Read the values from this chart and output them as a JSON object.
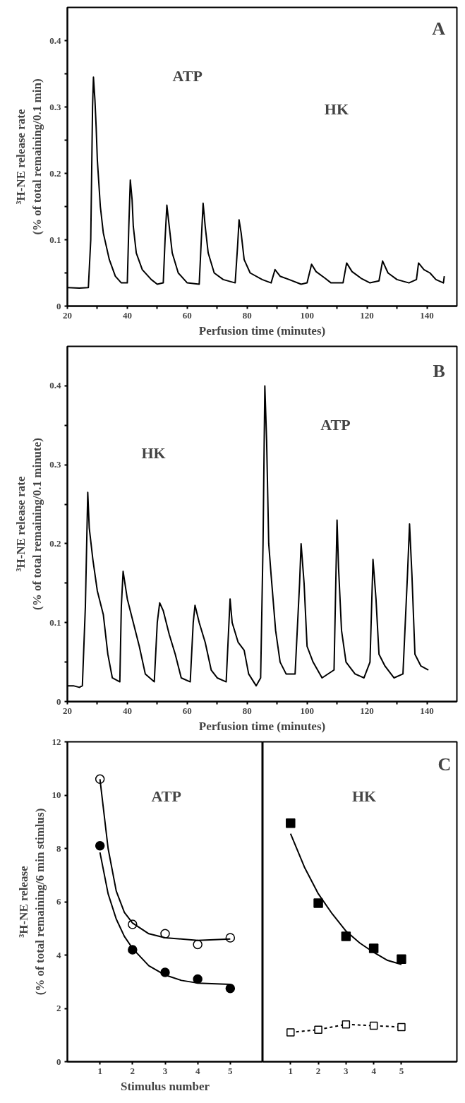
{
  "chart_data": [
    {
      "type": "line",
      "xlabel": "Perfusion time (minutes)",
      "ylabel": "³H-NE release rate\n(% of total remaining/0.1 min)",
      "annotations": [
        "A",
        "ATP",
        "HK"
      ],
      "xlim": [
        20,
        150
      ],
      "ylim": [
        0,
        0.45
      ],
      "xticks": [
        20,
        {
          "value": 30,
          "label": null
        },
        40,
        {
          "value": 50,
          "label": null
        },
        60,
        {
          "value": 70,
          "label": null
        },
        80,
        {
          "value": 90,
          "label": null
        },
        100,
        {
          "value": 110,
          "label": null
        },
        120,
        {
          "value": 130,
          "label": null
        },
        140
      ],
      "yticks": [
        0,
        {
          "value": 0.05,
          "label": null
        },
        0.1,
        {
          "value": 0.15,
          "label": null
        },
        0.2,
        {
          "value": 0.25,
          "label": null
        },
        0.3,
        {
          "value": 0.35,
          "label": null
        },
        0.4
      ],
      "grid": false,
      "marker": "none",
      "line_style": "solid",
      "series": [
        {
          "color": "#000000",
          "x": [
            20,
            24,
            27,
            27.8,
            28.4,
            28.7,
            29.2,
            29.6,
            30,
            31,
            32,
            34,
            36,
            38,
            40,
            40.5,
            41,
            41.6,
            42,
            43,
            45,
            48,
            50,
            52,
            52.6,
            53.2,
            54,
            55,
            57,
            60,
            64,
            64.7,
            65.3,
            66,
            67,
            69,
            72,
            76,
            76.8,
            77.3,
            78,
            79,
            81,
            85,
            88,
            89.3,
            91,
            94,
            98,
            100,
            101.5,
            103,
            106,
            108,
            112,
            113.2,
            115,
            118,
            121,
            124,
            125.2,
            127,
            130,
            134,
            136.5,
            137.2,
            139,
            141,
            143,
            145.5,
            145.8
          ],
          "values": [
            0.028,
            0.027,
            0.028,
            0.1,
            0.3,
            0.345,
            0.31,
            0.27,
            0.22,
            0.15,
            0.11,
            0.07,
            0.045,
            0.035,
            0.035,
            0.12,
            0.19,
            0.16,
            0.12,
            0.08,
            0.055,
            0.04,
            0.033,
            0.035,
            0.1,
            0.152,
            0.12,
            0.08,
            0.05,
            0.035,
            0.033,
            0.1,
            0.155,
            0.12,
            0.08,
            0.05,
            0.04,
            0.035,
            0.09,
            0.13,
            0.11,
            0.07,
            0.05,
            0.04,
            0.035,
            0.055,
            0.045,
            0.04,
            0.033,
            0.035,
            0.063,
            0.052,
            0.042,
            0.035,
            0.035,
            0.065,
            0.052,
            0.042,
            0.035,
            0.038,
            0.068,
            0.05,
            0.04,
            0.035,
            0.04,
            0.065,
            0.055,
            0.05,
            0.04,
            0.035,
            0.045
          ]
        }
      ]
    },
    {
      "type": "line",
      "xlabel": "Perfusion time (minutes)",
      "ylabel": "³H-NE release rate\n(% of total remaining/0.1 minute)",
      "annotations": [
        "B",
        "HK",
        "ATP"
      ],
      "xlim": [
        20,
        150
      ],
      "ylim": [
        0,
        0.45
      ],
      "xticks": [
        20,
        {
          "value": 30,
          "label": null
        },
        40,
        {
          "value": 50,
          "label": null
        },
        60,
        {
          "value": 70,
          "label": null
        },
        80,
        {
          "value": 90,
          "label": null
        },
        100,
        {
          "value": 110,
          "label": null
        },
        120,
        {
          "value": 130,
          "label": null
        },
        140
      ],
      "yticks": [
        0,
        {
          "value": 0.05,
          "label": null
        },
        0.1,
        {
          "value": 0.15,
          "label": null
        },
        0.2,
        {
          "value": 0.25,
          "label": null
        },
        0.3,
        {
          "value": 0.35,
          "label": null
        },
        0.4
      ],
      "grid": false,
      "marker": "none",
      "line_style": "solid",
      "series": [
        {
          "color": "#000000",
          "x": [
            20,
            22,
            24,
            25,
            26,
            26.8,
            27.3,
            28.5,
            30,
            32,
            33.5,
            35,
            37.5,
            38,
            38.6,
            40,
            42,
            44,
            46,
            49,
            50,
            50.8,
            52,
            54,
            56,
            58,
            61,
            62,
            62.6,
            64,
            66,
            68,
            70,
            73,
            74.3,
            75,
            77,
            79,
            80.5,
            83,
            84.5,
            85.3,
            85.9,
            86.5,
            87.2,
            88,
            89.5,
            91,
            93,
            96,
            97.5,
            98,
            99,
            100,
            102,
            105,
            109,
            110,
            110.5,
            111.5,
            113,
            116,
            119,
            121,
            122,
            123,
            124,
            126,
            129,
            132,
            133.5,
            134.2,
            135,
            136,
            138,
            140.5
          ],
          "values": [
            0.02,
            0.02,
            0.018,
            0.02,
            0.12,
            0.265,
            0.22,
            0.18,
            0.14,
            0.11,
            0.06,
            0.03,
            0.025,
            0.12,
            0.165,
            0.13,
            0.1,
            0.07,
            0.035,
            0.025,
            0.1,
            0.125,
            0.115,
            0.085,
            0.06,
            0.03,
            0.025,
            0.1,
            0.122,
            0.1,
            0.075,
            0.04,
            0.03,
            0.025,
            0.13,
            0.1,
            0.075,
            0.065,
            0.035,
            0.02,
            0.03,
            0.2,
            0.4,
            0.33,
            0.2,
            0.16,
            0.09,
            0.05,
            0.035,
            0.035,
            0.15,
            0.2,
            0.15,
            0.07,
            0.05,
            0.03,
            0.04,
            0.23,
            0.17,
            0.09,
            0.05,
            0.035,
            0.03,
            0.05,
            0.18,
            0.13,
            0.06,
            0.045,
            0.03,
            0.035,
            0.16,
            0.225,
            0.16,
            0.06,
            0.045,
            0.04
          ]
        }
      ]
    },
    {
      "type": "scatter",
      "ylabel": "³H-NE release\n(% of total remaining/6 min stimlus)",
      "xlabel": "Stimulus number",
      "annotations": [
        "ATP"
      ],
      "xlim": [
        0,
        6
      ],
      "ylim": [
        0,
        12
      ],
      "xticks": [
        1,
        2,
        3,
        4,
        5
      ],
      "yticks": [
        0,
        2,
        4,
        6,
        8,
        10,
        12
      ],
      "grid": false,
      "series": [
        {
          "type": "scatter",
          "marker": "circle",
          "color": "#ffffff",
          "x": [
            1,
            2,
            3,
            4,
            5
          ],
          "values": [
            10.6,
            5.15,
            4.8,
            4.4,
            4.65
          ]
        },
        {
          "type": "scatter",
          "marker": "circle",
          "color": "#000000",
          "x": [
            1,
            2,
            3,
            4,
            5
          ],
          "values": [
            8.1,
            4.2,
            3.35,
            3.1,
            2.75
          ]
        },
        {
          "type": "line",
          "marker": "none",
          "line_style": "solid",
          "color": "#000000",
          "x": [
            1,
            1.25,
            1.5,
            1.75,
            2,
            2.5,
            3,
            4,
            5
          ],
          "values": [
            10.6,
            8.0,
            6.4,
            5.6,
            5.2,
            4.8,
            4.65,
            4.55,
            4.6
          ]
        },
        {
          "type": "line",
          "marker": "none",
          "line_style": "solid",
          "color": "#000000",
          "x": [
            1,
            1.25,
            1.5,
            1.75,
            2,
            2.5,
            3,
            3.5,
            4,
            5
          ],
          "values": [
            7.85,
            6.3,
            5.35,
            4.7,
            4.25,
            3.6,
            3.25,
            3.05,
            2.95,
            2.9
          ]
        }
      ]
    },
    {
      "type": "scatter",
      "annotations": [
        "C",
        "HK"
      ],
      "xlim": [
        0,
        7
      ],
      "ylim": [
        0,
        12
      ],
      "xticks": [
        1,
        2,
        3,
        4,
        5
      ],
      "yticks": [
        0,
        2,
        4,
        6,
        8,
        10,
        12
      ],
      "tick_labels": "x",
      "grid": false,
      "series": [
        {
          "type": "scatter",
          "marker": "square",
          "color": "#000000",
          "x": [
            1,
            2,
            3,
            4,
            5
          ],
          "values": [
            8.95,
            5.95,
            4.7,
            4.25,
            3.85
          ]
        },
        {
          "type": "line",
          "marker": "square",
          "line_style": "dashed",
          "color": "#000000",
          "x": [
            1,
            2,
            3,
            4,
            5
          ],
          "values": [
            1.1,
            1.2,
            1.4,
            1.35,
            1.3
          ]
        },
        {
          "type": "line",
          "marker": "none",
          "line_style": "solid",
          "color": "#000000",
          "x": [
            1,
            1.5,
            2,
            2.5,
            3,
            3.5,
            4,
            4.5,
            5
          ],
          "values": [
            8.55,
            7.3,
            6.3,
            5.55,
            4.9,
            4.45,
            4.1,
            3.8,
            3.65
          ]
        }
      ]
    }
  ]
}
